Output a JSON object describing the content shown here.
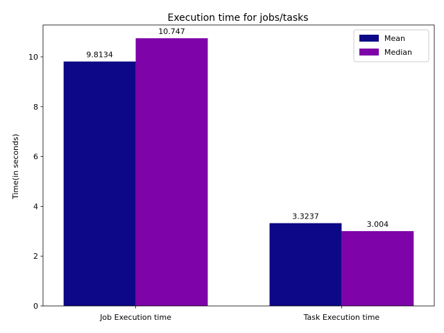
{
  "chart_data": {
    "type": "bar",
    "title": "Execution time for jobs/tasks",
    "xlabel": "",
    "ylabel": "Time(in seconds)",
    "categories": [
      "Job Execution time",
      "Task Execution time"
    ],
    "series": [
      {
        "name": "Mean",
        "values": [
          9.8134,
          3.3237
        ],
        "labels": [
          "9.8134",
          "3.3237"
        ],
        "color": "#0d0887"
      },
      {
        "name": "Median",
        "values": [
          10.747,
          3.004
        ],
        "labels": [
          "10.747",
          "3.004"
        ],
        "color": "#7e03a8"
      }
    ],
    "ylim": [
      0,
      11.28
    ],
    "yticks": [
      0,
      2,
      4,
      6,
      8,
      10
    ],
    "legend": "top-right",
    "grid": false
  }
}
